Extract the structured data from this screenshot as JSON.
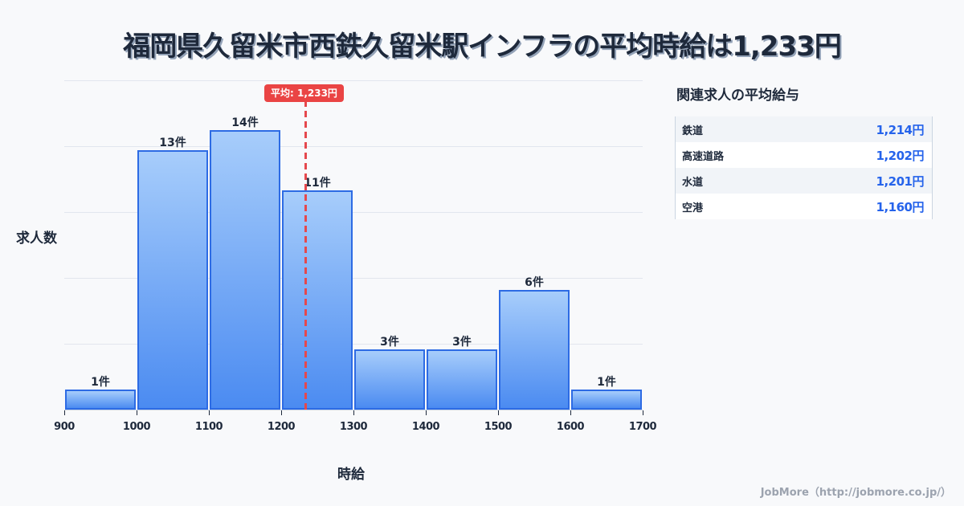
{
  "title": "福岡県久留米市西鉄久留米駅インフラの平均時給は1,233円",
  "chart": {
    "ylabel": "求人数",
    "xlabel": "時給",
    "mean_label": "平均: 1,233円",
    "x_ticks": [
      "900",
      "1000",
      "1100",
      "1200",
      "1300",
      "1400",
      "1500",
      "1600",
      "1700"
    ],
    "bar_labels": [
      "1件",
      "13件",
      "14件",
      "11件",
      "3件",
      "3件",
      "6件",
      "1件"
    ]
  },
  "side_panel": {
    "title": "関連求人の平均給与",
    "rows": [
      {
        "name": "鉄道",
        "value": "1,214円"
      },
      {
        "name": "高速道路",
        "value": "1,202円"
      },
      {
        "name": "水道",
        "value": "1,201円"
      },
      {
        "name": "空港",
        "value": "1,160円"
      }
    ]
  },
  "footer": "JobMore（http://jobmore.co.jp/）",
  "colors": {
    "bar_fill_top": "#a7cdfb",
    "bar_fill_bottom": "#4b8bf1",
    "bar_border": "#2d6be4",
    "mean_line": "#e5484d",
    "side_value": "#2563eb",
    "text": "#1e293b"
  },
  "chart_data": {
    "type": "bar",
    "title": "福岡県久留米市西鉄久留米駅インフラの平均時給は1,233円",
    "xlabel": "時給",
    "ylabel": "求人数",
    "bins": [
      [
        900,
        1000
      ],
      [
        1000,
        1100
      ],
      [
        1100,
        1200
      ],
      [
        1200,
        1300
      ],
      [
        1300,
        1400
      ],
      [
        1400,
        1500
      ],
      [
        1500,
        1600
      ],
      [
        1600,
        1700
      ]
    ],
    "categories": [
      "900-1000",
      "1000-1100",
      "1100-1200",
      "1200-1300",
      "1300-1400",
      "1400-1500",
      "1500-1600",
      "1600-1700"
    ],
    "values": [
      1,
      13,
      14,
      11,
      3,
      3,
      6,
      1
    ],
    "data_labels": [
      "1件",
      "13件",
      "14件",
      "11件",
      "3件",
      "3件",
      "6件",
      "1件"
    ],
    "x_ticks": [
      900,
      1000,
      1100,
      1200,
      1300,
      1400,
      1500,
      1600,
      1700
    ],
    "xlim": [
      900,
      1700
    ],
    "ylim": [
      0,
      16.5
    ],
    "grid": true,
    "annotations": [
      {
        "type": "vline",
        "x": 1233,
        "label": "平均: 1,233円",
        "style": "dashed",
        "color": "#e5484d"
      }
    ],
    "side_table": {
      "title": "関連求人の平均給与",
      "rows": [
        [
          "鉄道",
          1214
        ],
        [
          "高速道路",
          1202
        ],
        [
          "水道",
          1201
        ],
        [
          "空港",
          1160
        ]
      ]
    }
  }
}
